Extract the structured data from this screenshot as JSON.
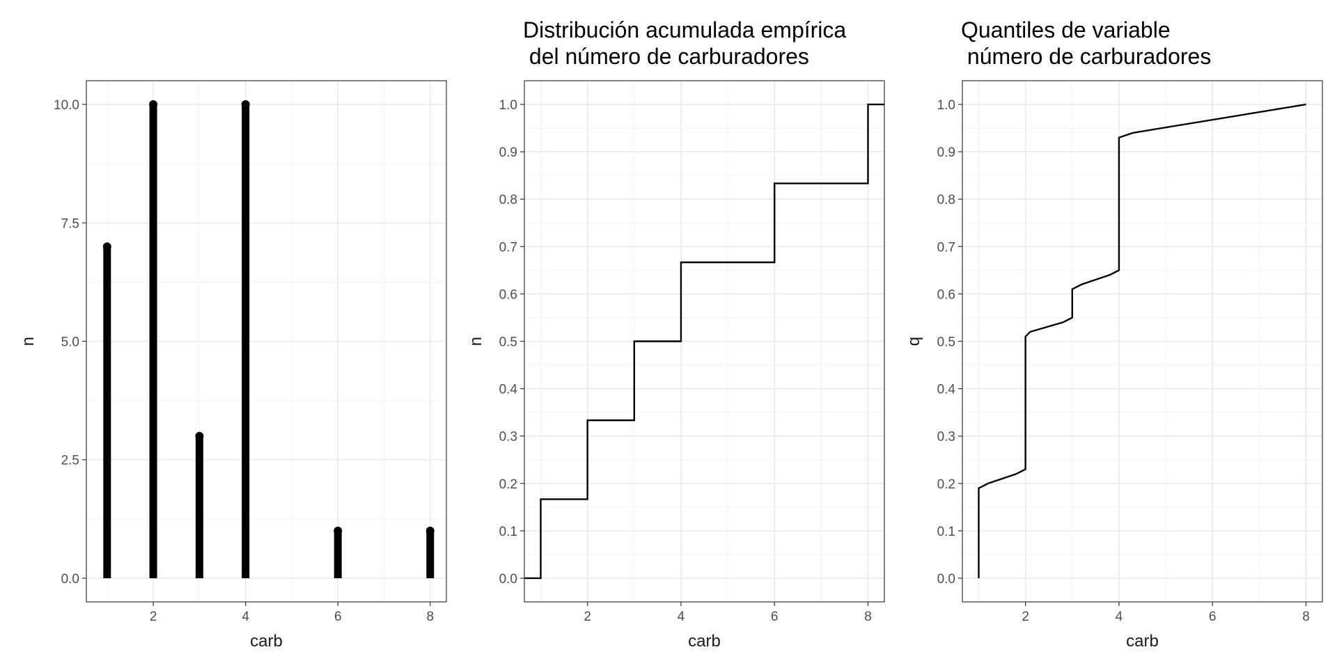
{
  "chart_data": [
    {
      "type": "bar",
      "title": "",
      "xlabel": "carb",
      "ylabel": "n",
      "xlim": [
        0.55,
        8.35
      ],
      "ylim": [
        -0.5,
        10.5
      ],
      "x_ticks": [
        2,
        4,
        6,
        8
      ],
      "x_tick_labels": [
        "2",
        "4",
        "6",
        "8"
      ],
      "y_ticks": [
        0,
        2.5,
        5,
        7.5,
        10
      ],
      "y_tick_labels": [
        "0.0",
        "2.5",
        "5.0",
        "7.5",
        "10.0"
      ],
      "grid": true,
      "points": [
        {
          "x": 1,
          "y": 7
        },
        {
          "x": 2,
          "y": 10
        },
        {
          "x": 3,
          "y": 3
        },
        {
          "x": 4,
          "y": 10
        },
        {
          "x": 6,
          "y": 1
        },
        {
          "x": 8,
          "y": 1
        }
      ]
    },
    {
      "type": "line",
      "title": "Distribución acumulada empírica\n del número de carburadores",
      "xlabel": "carb",
      "ylabel": "n",
      "xlim": [
        0.65,
        8.35
      ],
      "ylim": [
        -0.05,
        1.05
      ],
      "x_ticks": [
        2,
        4,
        6,
        8
      ],
      "x_tick_labels": [
        "2",
        "4",
        "6",
        "8"
      ],
      "y_ticks": [
        0,
        0.1,
        0.2,
        0.3,
        0.4,
        0.5,
        0.6,
        0.7,
        0.8,
        0.9,
        1.0
      ],
      "y_tick_labels": [
        "0.0",
        "0.1",
        "0.2",
        "0.3",
        "0.4",
        "0.5",
        "0.6",
        "0.7",
        "0.8",
        "0.9",
        "1.0"
      ],
      "grid": true,
      "step": true,
      "points": [
        {
          "x": 1,
          "y": 0.1667
        },
        {
          "x": 2,
          "y": 0.3333
        },
        {
          "x": 3,
          "y": 0.5
        },
        {
          "x": 4,
          "y": 0.6667
        },
        {
          "x": 6,
          "y": 0.8333
        },
        {
          "x": 8,
          "y": 1.0
        }
      ]
    },
    {
      "type": "line",
      "title": "Quantiles de variable\n número de carburadores",
      "xlabel": "carb",
      "ylabel": "q",
      "xlim": [
        0.65,
        8.35
      ],
      "ylim": [
        -0.05,
        1.05
      ],
      "x_ticks": [
        2,
        4,
        6,
        8
      ],
      "x_tick_labels": [
        "2",
        "4",
        "6",
        "8"
      ],
      "y_ticks": [
        0,
        0.1,
        0.2,
        0.3,
        0.4,
        0.5,
        0.6,
        0.7,
        0.8,
        0.9,
        1.0
      ],
      "y_tick_labels": [
        "0.0",
        "0.1",
        "0.2",
        "0.3",
        "0.4",
        "0.5",
        "0.6",
        "0.7",
        "0.8",
        "0.9",
        "1.0"
      ],
      "grid": true,
      "points": [
        {
          "x": 1.0,
          "y": 0.0
        },
        {
          "x": 1.0,
          "y": 0.19
        },
        {
          "x": 1.2,
          "y": 0.2
        },
        {
          "x": 1.8,
          "y": 0.22
        },
        {
          "x": 2.0,
          "y": 0.23
        },
        {
          "x": 2.0,
          "y": 0.51
        },
        {
          "x": 2.1,
          "y": 0.52
        },
        {
          "x": 2.8,
          "y": 0.54
        },
        {
          "x": 3.0,
          "y": 0.55
        },
        {
          "x": 3.0,
          "y": 0.61
        },
        {
          "x": 3.2,
          "y": 0.62
        },
        {
          "x": 3.8,
          "y": 0.64
        },
        {
          "x": 4.0,
          "y": 0.65
        },
        {
          "x": 4.0,
          "y": 0.93
        },
        {
          "x": 4.3,
          "y": 0.94
        },
        {
          "x": 8.0,
          "y": 1.0
        }
      ]
    }
  ]
}
